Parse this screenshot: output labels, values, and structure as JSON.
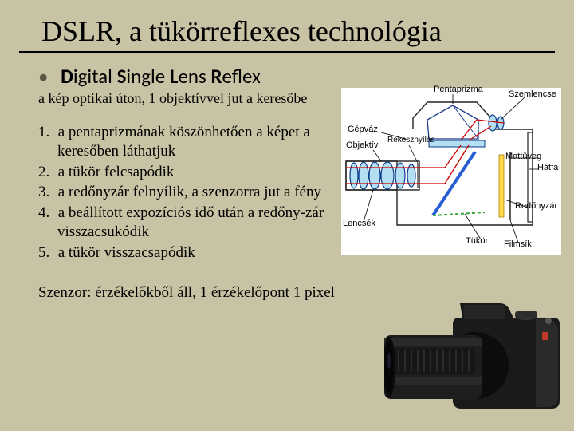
{
  "title": "DSLR, a tükörreflexes technológia",
  "subtitle_parts": {
    "d": "D",
    "igital": "igital ",
    "s": "S",
    "ingle": "ingle ",
    "l": "L",
    "ens": "ens ",
    "r": "R",
    "eflex": "eflex"
  },
  "optical_line": "a kép optikai úton, 1 objektívvel jut a keresőbe",
  "steps": [
    "a pentaprizmának köszönhetően a képet a keresőben láthatjuk",
    "a tükör felcsapódik",
    "a redőnyzár felnyílik, a szenzorra jut a fény",
    "a beállított expozíciós idő után a redőny-zár visszacsukódik",
    "a tükör visszacsapódik"
  ],
  "sensor_line": "Szenzor: érzékelőkből áll, 1 érzékelőpont 1 pixel",
  "diagram": {
    "labels": {
      "pentaprizma": "Pentaprizma",
      "szemlencse": "Szemlencse",
      "gepvaz": "Gépváz",
      "objektiv": "Objektív",
      "rekesznyilas": "Rekesznyílás",
      "mattuveg": "Mattüveg",
      "hatfa": "Hátfa",
      "lencsek": "Lencsék",
      "tukor": "Tükör",
      "redonyzar": "Redőnyzár",
      "filmsik": "Filmsík"
    },
    "colors": {
      "lens_fill": "#b3dff2",
      "lens_stroke": "#0b3a8a",
      "mirror": "#2a5ed4",
      "mirror_dash": "#3a3",
      "light_ray": "#c00",
      "prism_line": "#1a3a8a",
      "shutter": "#ffd84d",
      "body_line": "#222"
    }
  },
  "colors": {
    "background": "#c8c3a4",
    "camera_body": "#1a1a1a",
    "camera_grip": "#2a2a2a",
    "camera_red": "#c0392b",
    "lens_barrel": "#1e1e1e",
    "lens_glass": "#0a0a0a",
    "lens_ring": "#333"
  }
}
